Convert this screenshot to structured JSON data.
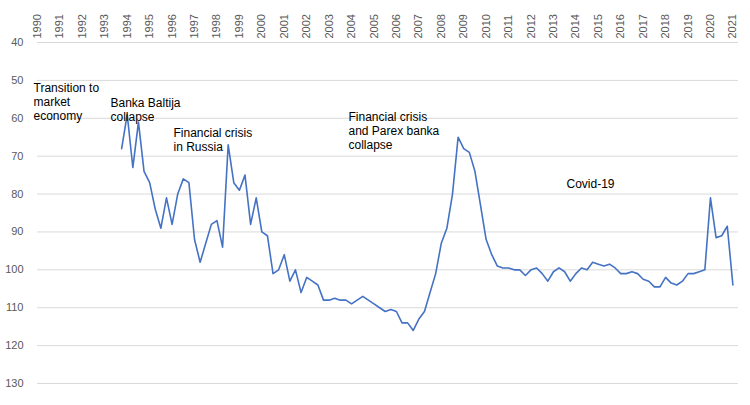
{
  "chart_data": {
    "type": "line",
    "color": "#4472c4",
    "grid": true,
    "xlim": [
      1990,
      2021.25
    ],
    "xticks": [
      1990,
      1991,
      1992,
      1993,
      1994,
      1995,
      1996,
      1997,
      1998,
      1999,
      2000,
      2001,
      2002,
      2003,
      2004,
      2005,
      2006,
      2007,
      2008,
      2009,
      2010,
      2011,
      2012,
      2013,
      2014,
      2015,
      2016,
      2017,
      2018,
      2019,
      2020,
      2021
    ],
    "ylim": [
      130,
      40
    ],
    "yticks": [
      40,
      50,
      60,
      70,
      80,
      90,
      100,
      110,
      120,
      130
    ],
    "annotations": [
      "Transition to\nmarket\neconomy",
      "Banka Baltija\ncollapse",
      "Financial crisis\nin Russia",
      "Financial crisis\nand Parex banka\ncollapse",
      "Covid-19"
    ],
    "x": [
      1993.75,
      1994.0,
      1994.25,
      1994.5,
      1994.75,
      1995.0,
      1995.25,
      1995.5,
      1995.75,
      1996.0,
      1996.25,
      1996.5,
      1996.75,
      1997.0,
      1997.25,
      1997.5,
      1997.75,
      1998.0,
      1998.25,
      1998.5,
      1998.75,
      1999.0,
      1999.25,
      1999.5,
      1999.75,
      2000.0,
      2000.25,
      2000.5,
      2000.75,
      2001.0,
      2001.25,
      2001.5,
      2001.75,
      2002.0,
      2002.25,
      2002.5,
      2002.75,
      2003.0,
      2003.25,
      2003.5,
      2003.75,
      2004.0,
      2004.25,
      2004.5,
      2004.75,
      2005.0,
      2005.25,
      2005.5,
      2005.75,
      2006.0,
      2006.25,
      2006.5,
      2006.75,
      2007.0,
      2007.25,
      2007.5,
      2007.75,
      2008.0,
      2008.25,
      2008.5,
      2008.75,
      2009.0,
      2009.25,
      2009.5,
      2009.75,
      2010.0,
      2010.25,
      2010.5,
      2010.75,
      2011.0,
      2011.25,
      2011.5,
      2011.75,
      2012.0,
      2012.25,
      2012.5,
      2012.75,
      2013.0,
      2013.25,
      2013.5,
      2013.75,
      2014.0,
      2014.25,
      2014.5,
      2014.75,
      2015.0,
      2015.25,
      2015.5,
      2015.75,
      2016.0,
      2016.25,
      2016.5,
      2016.75,
      2017.0,
      2017.25,
      2017.5,
      2017.75,
      2018.0,
      2018.25,
      2018.5,
      2018.75,
      2019.0,
      2019.25,
      2019.5,
      2019.75,
      2020.0,
      2020.25,
      2020.5,
      2020.75,
      2021.0
    ],
    "values": [
      68,
      59,
      73,
      61,
      74,
      77,
      84,
      89,
      81,
      88,
      80,
      76,
      77,
      92,
      98,
      93,
      88,
      87,
      94,
      67,
      77,
      79,
      75,
      88,
      81,
      90,
      91,
      101,
      100,
      96,
      103,
      100,
      106,
      102,
      103,
      104,
      108,
      108,
      107.5,
      108,
      108,
      109,
      108,
      107,
      108,
      109,
      110,
      111,
      110.5,
      111,
      114,
      114,
      116,
      113,
      111,
      106,
      101,
      93,
      89,
      80,
      65,
      68,
      69,
      74,
      83,
      92,
      96,
      99,
      99.5,
      99.5,
      100,
      100,
      101.5,
      100,
      99.5,
      101,
      103,
      100.5,
      99.5,
      100.5,
      103,
      101,
      99.5,
      100,
      98,
      98.5,
      99,
      98.5,
      99.5,
      101,
      101,
      100.5,
      101,
      102.5,
      103,
      104.5,
      104.5,
      102,
      103.5,
      104,
      103,
      101,
      101,
      100.5,
      100,
      81,
      91.5,
      91,
      88.5,
      104
    ]
  }
}
